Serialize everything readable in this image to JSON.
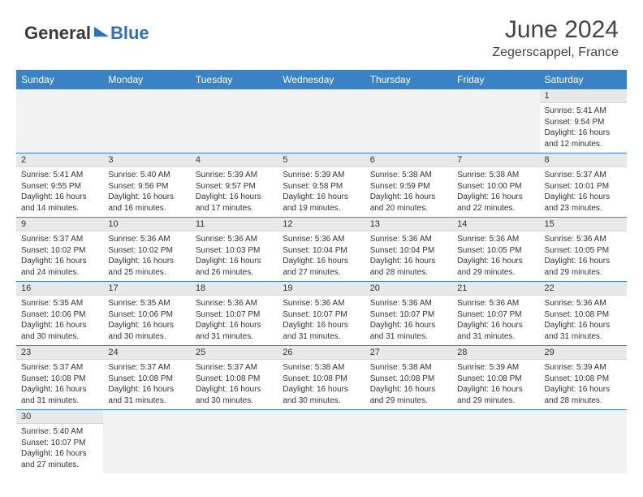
{
  "brand": {
    "part1": "General",
    "part2": "Blue"
  },
  "title": "June 2024",
  "location": "Zegerscappel, France",
  "colors": {
    "header_bg": "#3b82c4",
    "header_text": "#ffffff",
    "daynum_bg": "#e8e8e8",
    "row_border": "#3b82c4",
    "empty_bg": "#f2f2f2",
    "logo_blue": "#2d72b8",
    "logo_dark": "#3a3a3a"
  },
  "weekdays": [
    "Sunday",
    "Monday",
    "Tuesday",
    "Wednesday",
    "Thursday",
    "Friday",
    "Saturday"
  ],
  "weeks": [
    [
      null,
      null,
      null,
      null,
      null,
      null,
      {
        "n": "1",
        "sr": "5:41 AM",
        "ss": "9:54 PM",
        "dl": "16 hours and 12 minutes."
      }
    ],
    [
      {
        "n": "2",
        "sr": "5:41 AM",
        "ss": "9:55 PM",
        "dl": "16 hours and 14 minutes."
      },
      {
        "n": "3",
        "sr": "5:40 AM",
        "ss": "9:56 PM",
        "dl": "16 hours and 16 minutes."
      },
      {
        "n": "4",
        "sr": "5:39 AM",
        "ss": "9:57 PM",
        "dl": "16 hours and 17 minutes."
      },
      {
        "n": "5",
        "sr": "5:39 AM",
        "ss": "9:58 PM",
        "dl": "16 hours and 19 minutes."
      },
      {
        "n": "6",
        "sr": "5:38 AM",
        "ss": "9:59 PM",
        "dl": "16 hours and 20 minutes."
      },
      {
        "n": "7",
        "sr": "5:38 AM",
        "ss": "10:00 PM",
        "dl": "16 hours and 22 minutes."
      },
      {
        "n": "8",
        "sr": "5:37 AM",
        "ss": "10:01 PM",
        "dl": "16 hours and 23 minutes."
      }
    ],
    [
      {
        "n": "9",
        "sr": "5:37 AM",
        "ss": "10:02 PM",
        "dl": "16 hours and 24 minutes."
      },
      {
        "n": "10",
        "sr": "5:36 AM",
        "ss": "10:02 PM",
        "dl": "16 hours and 25 minutes."
      },
      {
        "n": "11",
        "sr": "5:36 AM",
        "ss": "10:03 PM",
        "dl": "16 hours and 26 minutes."
      },
      {
        "n": "12",
        "sr": "5:36 AM",
        "ss": "10:04 PM",
        "dl": "16 hours and 27 minutes."
      },
      {
        "n": "13",
        "sr": "5:36 AM",
        "ss": "10:04 PM",
        "dl": "16 hours and 28 minutes."
      },
      {
        "n": "14",
        "sr": "5:36 AM",
        "ss": "10:05 PM",
        "dl": "16 hours and 29 minutes."
      },
      {
        "n": "15",
        "sr": "5:36 AM",
        "ss": "10:05 PM",
        "dl": "16 hours and 29 minutes."
      }
    ],
    [
      {
        "n": "16",
        "sr": "5:35 AM",
        "ss": "10:06 PM",
        "dl": "16 hours and 30 minutes."
      },
      {
        "n": "17",
        "sr": "5:35 AM",
        "ss": "10:06 PM",
        "dl": "16 hours and 30 minutes."
      },
      {
        "n": "18",
        "sr": "5:36 AM",
        "ss": "10:07 PM",
        "dl": "16 hours and 31 minutes."
      },
      {
        "n": "19",
        "sr": "5:36 AM",
        "ss": "10:07 PM",
        "dl": "16 hours and 31 minutes."
      },
      {
        "n": "20",
        "sr": "5:36 AM",
        "ss": "10:07 PM",
        "dl": "16 hours and 31 minutes."
      },
      {
        "n": "21",
        "sr": "5:36 AM",
        "ss": "10:07 PM",
        "dl": "16 hours and 31 minutes."
      },
      {
        "n": "22",
        "sr": "5:36 AM",
        "ss": "10:08 PM",
        "dl": "16 hours and 31 minutes."
      }
    ],
    [
      {
        "n": "23",
        "sr": "5:37 AM",
        "ss": "10:08 PM",
        "dl": "16 hours and 31 minutes."
      },
      {
        "n": "24",
        "sr": "5:37 AM",
        "ss": "10:08 PM",
        "dl": "16 hours and 31 minutes."
      },
      {
        "n": "25",
        "sr": "5:37 AM",
        "ss": "10:08 PM",
        "dl": "16 hours and 30 minutes."
      },
      {
        "n": "26",
        "sr": "5:38 AM",
        "ss": "10:08 PM",
        "dl": "16 hours and 30 minutes."
      },
      {
        "n": "27",
        "sr": "5:38 AM",
        "ss": "10:08 PM",
        "dl": "16 hours and 29 minutes."
      },
      {
        "n": "28",
        "sr": "5:39 AM",
        "ss": "10:08 PM",
        "dl": "16 hours and 29 minutes."
      },
      {
        "n": "29",
        "sr": "5:39 AM",
        "ss": "10:08 PM",
        "dl": "16 hours and 28 minutes."
      }
    ],
    [
      {
        "n": "30",
        "sr": "5:40 AM",
        "ss": "10:07 PM",
        "dl": "16 hours and 27 minutes."
      },
      null,
      null,
      null,
      null,
      null,
      null
    ]
  ],
  "labels": {
    "sunrise": "Sunrise:",
    "sunset": "Sunset:",
    "daylight": "Daylight:"
  }
}
